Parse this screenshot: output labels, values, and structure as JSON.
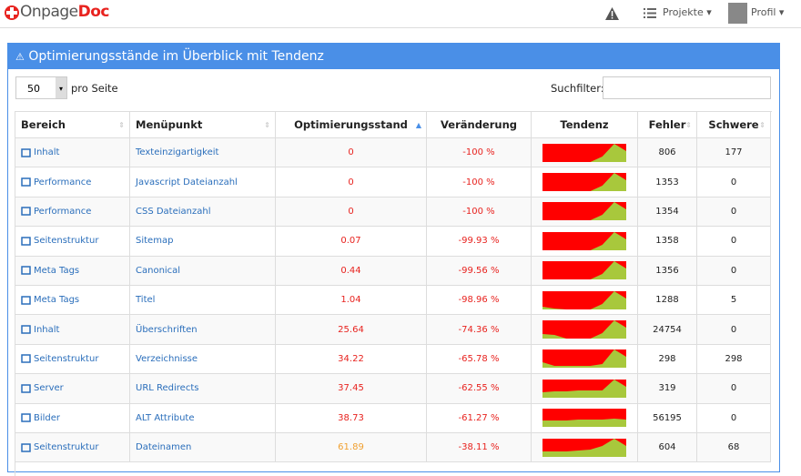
{
  "header": {
    "logo_main": "Onpage",
    "logo_accent": "Doc",
    "nav": [
      "Projekte",
      "Profil"
    ]
  },
  "panel": {
    "title": "Optimierungsstände im Überblick mit Tendenz",
    "page_size": "50",
    "page_size_label": "pro Seite",
    "search_label": "Suchfilter:"
  },
  "table": {
    "columns": [
      "Bereich",
      "Menüpunkt",
      "Optimierungsstand",
      "Veränderung",
      "Tendenz",
      "Fehler",
      "Schwere"
    ],
    "rows": [
      {
        "bereich": "Inhalt",
        "menu": "Texteinzigartigkeit",
        "stand": "0",
        "stand_color": "#e8231f",
        "change": "-100 %",
        "trend": [
          0,
          0,
          0,
          0,
          0,
          30,
          100,
          60
        ],
        "fehler": "806",
        "schwere": "177"
      },
      {
        "bereich": "Performance",
        "menu": "Javascript Dateianzahl",
        "stand": "0",
        "stand_color": "#e8231f",
        "change": "-100 %",
        "trend": [
          0,
          0,
          0,
          0,
          0,
          30,
          100,
          60
        ],
        "fehler": "1353",
        "schwere": "0"
      },
      {
        "bereich": "Performance",
        "menu": "CSS Dateianzahl",
        "stand": "0",
        "stand_color": "#e8231f",
        "change": "-100 %",
        "trend": [
          0,
          0,
          0,
          0,
          0,
          30,
          100,
          60
        ],
        "fehler": "1354",
        "schwere": "0"
      },
      {
        "bereich": "Seitenstruktur",
        "menu": "Sitemap",
        "stand": "0.07",
        "stand_color": "#e8231f",
        "change": "-99.93 %",
        "trend": [
          0,
          0,
          0,
          0,
          0,
          30,
          100,
          60
        ],
        "fehler": "1358",
        "schwere": "0"
      },
      {
        "bereich": "Meta Tags",
        "menu": "Canonical",
        "stand": "0.44",
        "stand_color": "#e8231f",
        "change": "-99.56 %",
        "trend": [
          0,
          0,
          0,
          0,
          0,
          30,
          100,
          60
        ],
        "fehler": "1356",
        "schwere": "0"
      },
      {
        "bereich": "Meta Tags",
        "menu": "Titel",
        "stand": "1.04",
        "stand_color": "#e8231f",
        "change": "-98.96 %",
        "trend": [
          15,
          5,
          0,
          0,
          0,
          30,
          100,
          60
        ],
        "fehler": "1288",
        "schwere": "5"
      },
      {
        "bereich": "Inhalt",
        "menu": "Überschriften",
        "stand": "25.64",
        "stand_color": "#e8231f",
        "change": "-74.36 %",
        "trend": [
          25,
          20,
          0,
          0,
          0,
          30,
          100,
          60
        ],
        "fehler": "24754",
        "schwere": "0"
      },
      {
        "bereich": "Seitenstruktur",
        "menu": "Verzeichnisse",
        "stand": "34.22",
        "stand_color": "#e8231f",
        "change": "-65.78 %",
        "trend": [
          30,
          10,
          10,
          10,
          10,
          20,
          100,
          60
        ],
        "fehler": "298",
        "schwere": "298"
      },
      {
        "bereich": "Server",
        "menu": "URL Redirects",
        "stand": "37.45",
        "stand_color": "#e8231f",
        "change": "-62.55 %",
        "trend": [
          30,
          35,
          35,
          40,
          40,
          40,
          100,
          60
        ],
        "fehler": "319",
        "schwere": "0"
      },
      {
        "bereich": "Bilder",
        "menu": "ALT Attribute",
        "stand": "38.73",
        "stand_color": "#e8231f",
        "change": "-61.27 %",
        "trend": [
          35,
          35,
          35,
          40,
          40,
          40,
          45,
          40
        ],
        "fehler": "56195",
        "schwere": "0"
      },
      {
        "bereich": "Seitenstruktur",
        "menu": "Dateinamen",
        "stand": "61.89",
        "stand_color": "#f0a030",
        "change": "-38.11 %",
        "trend": [
          30,
          30,
          30,
          35,
          40,
          60,
          100,
          60
        ],
        "fehler": "604",
        "schwere": "68"
      }
    ]
  }
}
